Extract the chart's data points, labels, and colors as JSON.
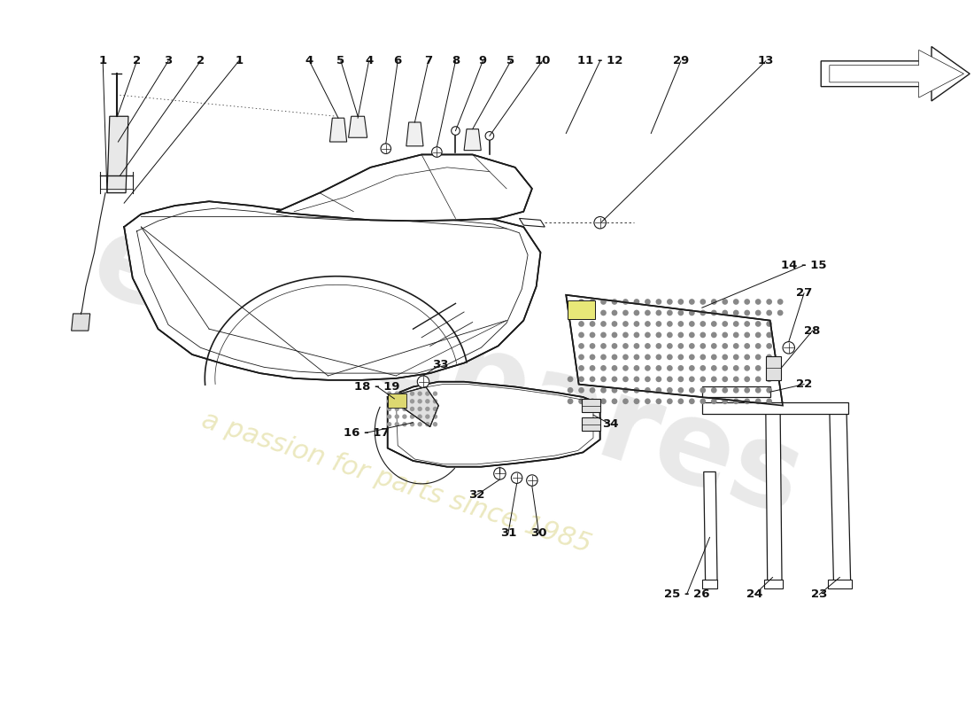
{
  "background_color": "#ffffff",
  "line_color": "#1a1a1a",
  "watermark_text1": "eurospares",
  "watermark_text2": "a passion for parts since 1985",
  "label_fontsize": 9,
  "line_width": 1.2,
  "arrow_color": "#e8a020"
}
